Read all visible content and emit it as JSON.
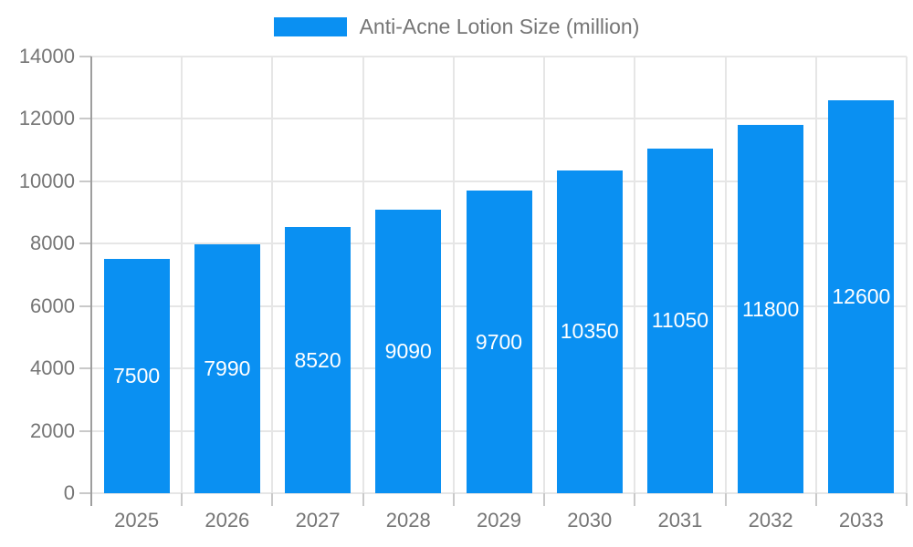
{
  "legend": {
    "label": "Anti-Acne Lotion Size (million)"
  },
  "colors": {
    "bar": "#0a90f2",
    "grid": "#e6e6e6",
    "axis": "#9e9e9e",
    "tick": "#c9c9c9",
    "axis_text": "#757575",
    "bar_label_text": "#ffffff",
    "background": "#ffffff"
  },
  "chart_data": {
    "type": "bar",
    "title": "",
    "legend_entries": [
      "Anti-Acne Lotion Size (million)"
    ],
    "legend_position": "top",
    "categories": [
      "2025",
      "2026",
      "2027",
      "2028",
      "2029",
      "2030",
      "2031",
      "2032",
      "2033"
    ],
    "values": [
      7500,
      7990,
      8520,
      9090,
      9700,
      10350,
      11050,
      11800,
      12600
    ],
    "data_labels_visible": true,
    "xlabel": "",
    "ylabel": "",
    "ylim": [
      0,
      14000
    ],
    "ytick_step": 2000,
    "ytick_labels": [
      "0",
      "2000",
      "4000",
      "6000",
      "8000",
      "10000",
      "12000",
      "14000"
    ],
    "grid": true
  }
}
